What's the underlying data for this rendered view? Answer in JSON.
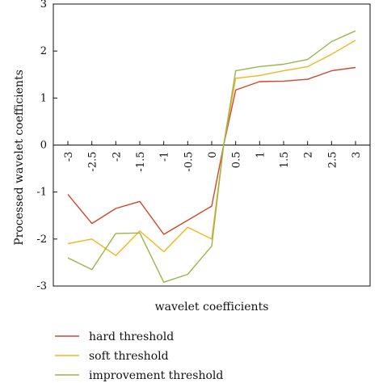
{
  "chart_data": {
    "type": "line",
    "xlabel": "wavelet coefficients",
    "ylabel": "Processed wavelet coefficients",
    "xlim": [
      -3,
      3
    ],
    "ylim": [
      -3,
      3
    ],
    "x_ticks": [
      "-3",
      "-2.5",
      "-2",
      "-1.5",
      "-1",
      "-0.5",
      "0",
      "0.5",
      "1",
      "1.5",
      "2",
      "2.5",
      "3"
    ],
    "y_ticks": [
      "3",
      "2",
      "1",
      "0",
      "-1",
      "-2",
      "-3"
    ],
    "grid": false,
    "legend_position": "bottom",
    "x": [
      -3,
      -2.5,
      -2,
      -1.5,
      -1,
      -0.5,
      0,
      0.25,
      0.5,
      1,
      1.5,
      2,
      2.5,
      3
    ],
    "series": [
      {
        "name": "hard threshold",
        "color": "#d2462b",
        "values": [
          -1.05,
          -1.67,
          -1.35,
          -1.2,
          -1.9,
          -1.6,
          -1.3,
          0.0,
          1.17,
          1.35,
          1.36,
          1.4,
          1.58,
          1.65
        ]
      },
      {
        "name": "soft threshold",
        "color": "#f2b51d",
        "values": [
          -2.1,
          -2.0,
          -2.35,
          -1.83,
          -2.27,
          -1.75,
          -2.0,
          0.0,
          1.42,
          1.48,
          1.58,
          1.67,
          1.93,
          2.23
        ]
      },
      {
        "name": "improvement threshold",
        "color": "#98b54a",
        "values": [
          -2.4,
          -2.65,
          -1.88,
          -1.87,
          -2.92,
          -2.75,
          -2.15,
          0.0,
          1.58,
          1.67,
          1.72,
          1.82,
          2.2,
          2.43
        ]
      }
    ]
  }
}
